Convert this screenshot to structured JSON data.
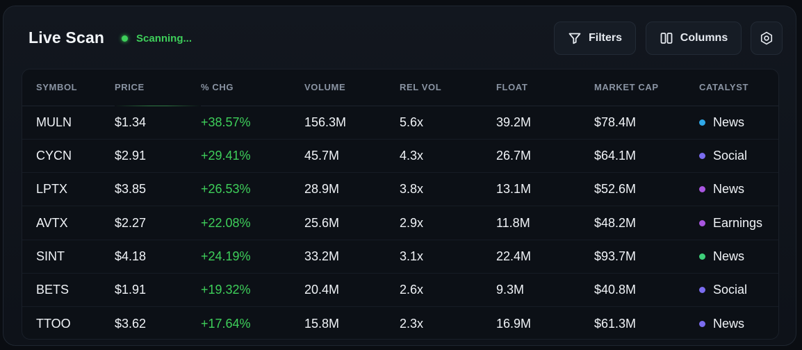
{
  "header": {
    "title": "Live Scan",
    "status": "Scanning...",
    "status_color": "#3ecf5a",
    "filters_label": "Filters",
    "columns_label": "Columns",
    "filter_icon": "funnel-icon",
    "columns_icon": "columns-icon",
    "settings_icon": "gear-icon"
  },
  "table": {
    "columns": [
      "SYMBOL",
      "PRICE",
      "% CHG",
      "VOLUME",
      "REL VOL",
      "FLOAT",
      "MARKET CAP",
      "CATALYST"
    ],
    "rows": [
      {
        "symbol": "MULN",
        "price": "$1.34",
        "chg": "+38.57%",
        "volume": "156.3M",
        "rel_vol": "5.6x",
        "float": "39.2M",
        "market_cap": "$78.4M",
        "catalyst": "News",
        "catalyst_color": "#2fa8e8"
      },
      {
        "symbol": "CYCN",
        "price": "$2.91",
        "chg": "+29.41%",
        "volume": "45.7M",
        "rel_vol": "4.3x",
        "float": "26.7M",
        "market_cap": "$64.1M",
        "catalyst": "Social",
        "catalyst_color": "#7b6cf0"
      },
      {
        "symbol": "LPTX",
        "price": "$3.85",
        "chg": "+26.53%",
        "volume": "28.9M",
        "rel_vol": "3.8x",
        "float": "13.1M",
        "market_cap": "$52.6M",
        "catalyst": "News",
        "catalyst_color": "#a956e0"
      },
      {
        "symbol": "AVTX",
        "price": "$2.27",
        "chg": "+22.08%",
        "volume": "25.6M",
        "rel_vol": "2.9x",
        "float": "11.8M",
        "market_cap": "$48.2M",
        "catalyst": "Earnings",
        "catalyst_color": "#a956e0"
      },
      {
        "symbol": "SINT",
        "price": "$4.18",
        "chg": "+24.19%",
        "volume": "33.2M",
        "rel_vol": "3.1x",
        "float": "22.4M",
        "market_cap": "$93.7M",
        "catalyst": "News",
        "catalyst_color": "#3ecf7a"
      },
      {
        "symbol": "BETS",
        "price": "$1.91",
        "chg": "+19.32%",
        "volume": "20.4M",
        "rel_vol": "2.6x",
        "float": "9.3M",
        "market_cap": "$40.8M",
        "catalyst": "Social",
        "catalyst_color": "#7b6cf0"
      },
      {
        "symbol": "TTOO",
        "price": "$3.62",
        "chg": "+17.64%",
        "volume": "15.8M",
        "rel_vol": "2.3x",
        "float": "16.9M",
        "market_cap": "$61.3M",
        "catalyst": "News",
        "catalyst_color": "#7b6cf0"
      }
    ]
  }
}
